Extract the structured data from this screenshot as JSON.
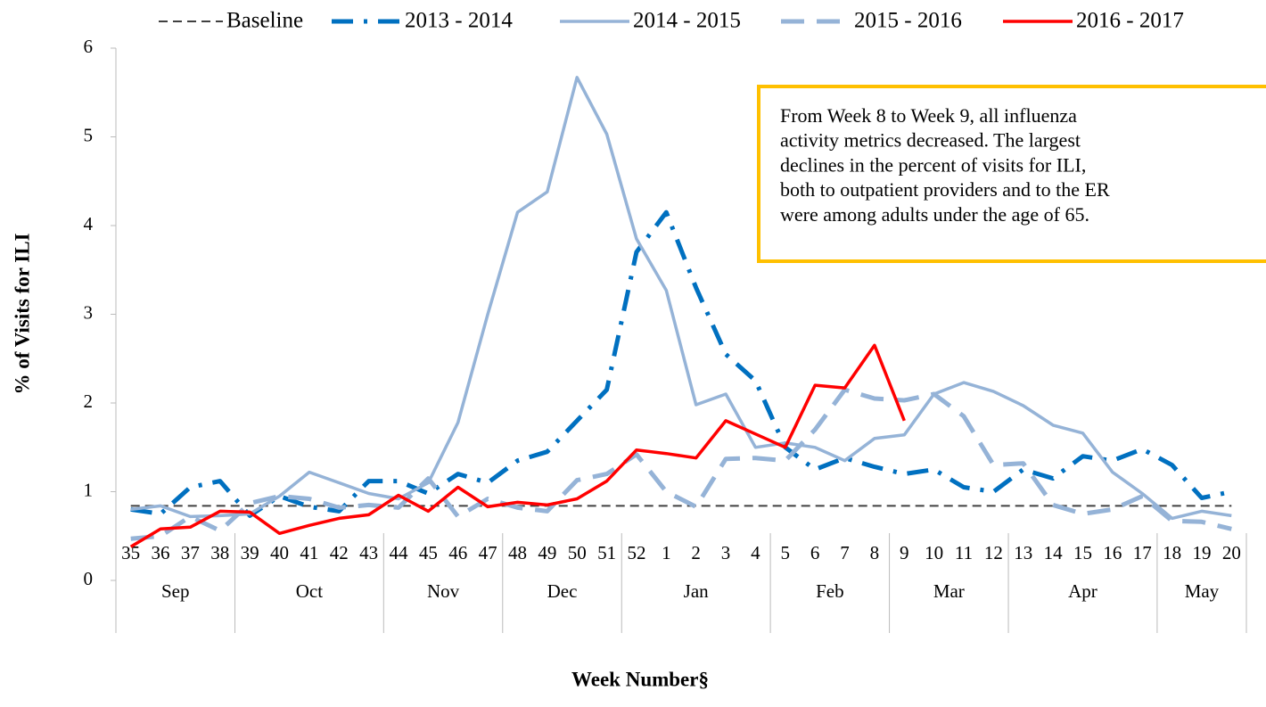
{
  "chart_data": {
    "type": "line",
    "x_label": "Week Number§",
    "y_label": "% of Visits for ILI",
    "categories": [
      "35",
      "36",
      "37",
      "38",
      "39",
      "40",
      "41",
      "42",
      "43",
      "44",
      "45",
      "46",
      "47",
      "48",
      "49",
      "50",
      "51",
      "52",
      "1",
      "2",
      "3",
      "4",
      "5",
      "6",
      "7",
      "8",
      "9",
      "10",
      "11",
      "12",
      "13",
      "14",
      "15",
      "16",
      "17",
      "18",
      "19",
      "20"
    ],
    "category_months": [
      "Sep",
      "Sep",
      "Sep",
      "Sep",
      "Oct",
      "Oct",
      "Oct",
      "Oct",
      "Oct",
      "Nov",
      "Nov",
      "Nov",
      "Nov",
      "Dec",
      "Dec",
      "Dec",
      "Dec",
      "Jan",
      "Jan",
      "Jan",
      "Jan",
      "Jan",
      "Feb",
      "Feb",
      "Feb",
      "Feb",
      "Mar",
      "Mar",
      "Mar",
      "Mar",
      "Apr",
      "Apr",
      "Apr",
      "Apr",
      "Apr",
      "May",
      "May",
      "May"
    ],
    "ylim": [
      0,
      6
    ],
    "yticks": [
      0,
      1,
      2,
      3,
      4,
      5,
      6
    ],
    "legend": "top",
    "series": [
      {
        "name": "Baseline",
        "color": "#404040",
        "dash": "dashed-thin",
        "values": [
          0.84,
          0.84,
          0.84,
          0.84,
          0.84,
          0.84,
          0.84,
          0.84,
          0.84,
          0.84,
          0.84,
          0.84,
          0.84,
          0.84,
          0.84,
          0.84,
          0.84,
          0.84,
          0.84,
          0.84,
          0.84,
          0.84,
          0.84,
          0.84,
          0.84,
          0.84,
          0.84,
          0.84,
          0.84,
          0.84,
          0.84,
          0.84,
          0.84,
          0.84,
          0.84,
          0.84,
          0.84,
          0.84
        ]
      },
      {
        "name": "2013 - 2014",
        "color": "#0070c0",
        "dash": "dash-dot",
        "values": [
          0.8,
          0.75,
          1.05,
          1.12,
          0.73,
          0.95,
          0.83,
          0.78,
          1.12,
          1.12,
          0.98,
          1.2,
          1.1,
          1.35,
          1.45,
          1.8,
          2.15,
          3.7,
          4.15,
          3.3,
          2.55,
          2.25,
          1.5,
          1.25,
          1.38,
          1.28,
          1.2,
          1.25,
          1.05,
          1.0,
          1.25,
          1.15,
          1.4,
          1.35,
          1.48,
          1.3,
          0.93,
          1.0
        ]
      },
      {
        "name": "2014 - 2015",
        "color": "#95b3d7",
        "dash": "solid",
        "values": [
          0.8,
          0.84,
          0.72,
          0.73,
          0.75,
          0.95,
          1.22,
          1.1,
          0.98,
          0.92,
          1.1,
          1.78,
          3.0,
          4.15,
          4.38,
          5.67,
          5.03,
          3.85,
          3.27,
          1.98,
          2.1,
          1.5,
          1.55,
          1.5,
          1.35,
          1.6,
          1.64,
          2.1,
          2.23,
          2.13,
          1.97,
          1.75,
          1.66,
          1.22,
          0.98,
          0.7,
          0.78,
          0.73
        ]
      },
      {
        "name": "2015 - 2016",
        "color": "#95b3d7",
        "dash": "dashed",
        "values": [
          0.47,
          0.5,
          0.72,
          0.56,
          0.87,
          0.95,
          0.92,
          0.82,
          0.85,
          0.82,
          1.15,
          0.72,
          0.92,
          0.82,
          0.78,
          1.13,
          1.2,
          1.42,
          1.0,
          0.83,
          1.37,
          1.38,
          1.35,
          1.7,
          2.15,
          2.05,
          2.03,
          2.1,
          1.85,
          1.3,
          1.32,
          0.85,
          0.75,
          0.8,
          0.95,
          0.67,
          0.66,
          0.58
        ]
      },
      {
        "name": "2016 - 2017",
        "color": "#ff0000",
        "dash": "solid",
        "values": [
          0.38,
          0.58,
          0.6,
          0.78,
          0.77,
          0.53,
          0.62,
          0.7,
          0.74,
          0.96,
          0.78,
          1.05,
          0.83,
          0.88,
          0.85,
          0.92,
          1.12,
          1.47,
          1.43,
          1.38,
          1.8,
          1.65,
          1.5,
          2.2,
          2.17,
          2.65,
          1.8,
          null,
          null,
          null,
          null,
          null,
          null,
          null,
          null,
          null,
          null,
          null
        ]
      }
    ],
    "annotation": {
      "color": "#ffc000",
      "lines": [
        "From Week 8 to Week 9, all influenza",
        "activity metrics decreased. The largest",
        "declines in the percent of visits for ILI,",
        "both to outpatient providers and to the ER",
        "were among adults under the age of 65."
      ]
    }
  }
}
